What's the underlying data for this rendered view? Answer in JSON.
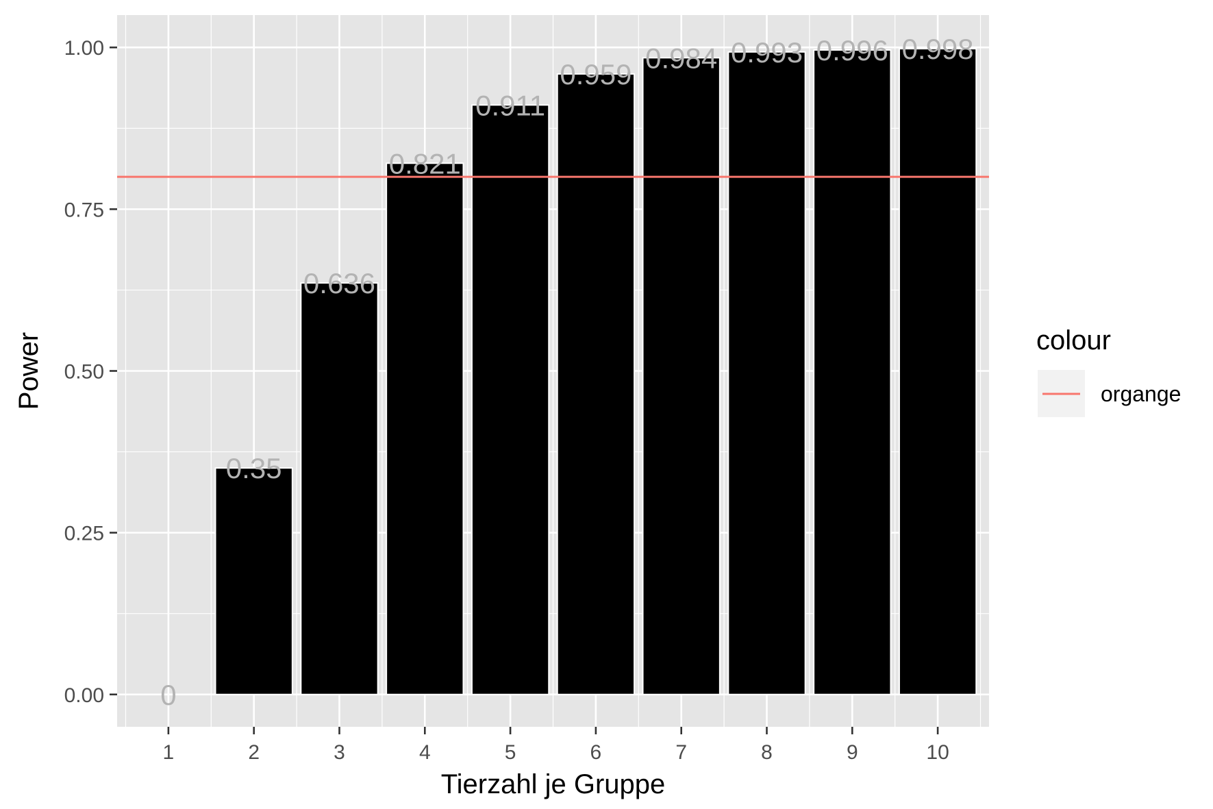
{
  "chart_data": {
    "type": "bar",
    "title": "",
    "xlabel": "Tierzahl je Gruppe",
    "ylabel": "Power",
    "categories": [
      "1",
      "2",
      "3",
      "4",
      "5",
      "6",
      "7",
      "8",
      "9",
      "10"
    ],
    "values": [
      0,
      0.35,
      0.636,
      0.821,
      0.911,
      0.959,
      0.984,
      0.993,
      0.996,
      0.998
    ],
    "labels": [
      "0",
      "0.35",
      "0.636",
      "0.821",
      "0.911",
      "0.959",
      "0.984",
      "0.993",
      "0.996",
      "0.998"
    ],
    "y_ticks": [
      0,
      0.25,
      0.5,
      0.75,
      1.0
    ],
    "y_tick_labels": [
      "0.00",
      "0.25",
      "0.50",
      "0.75",
      "1.00"
    ],
    "ylim": [
      -0.05,
      1.05
    ],
    "grid": true,
    "bar_color": "#000000",
    "label_color": "#b3b3b3",
    "panel_background": "#e5e5e5",
    "reference_line": {
      "y": 0.8,
      "color": "#f8766d"
    },
    "legend": {
      "title": "colour",
      "placement": "right",
      "items": [
        {
          "label": "organge",
          "color": "#f8766d"
        }
      ]
    }
  }
}
